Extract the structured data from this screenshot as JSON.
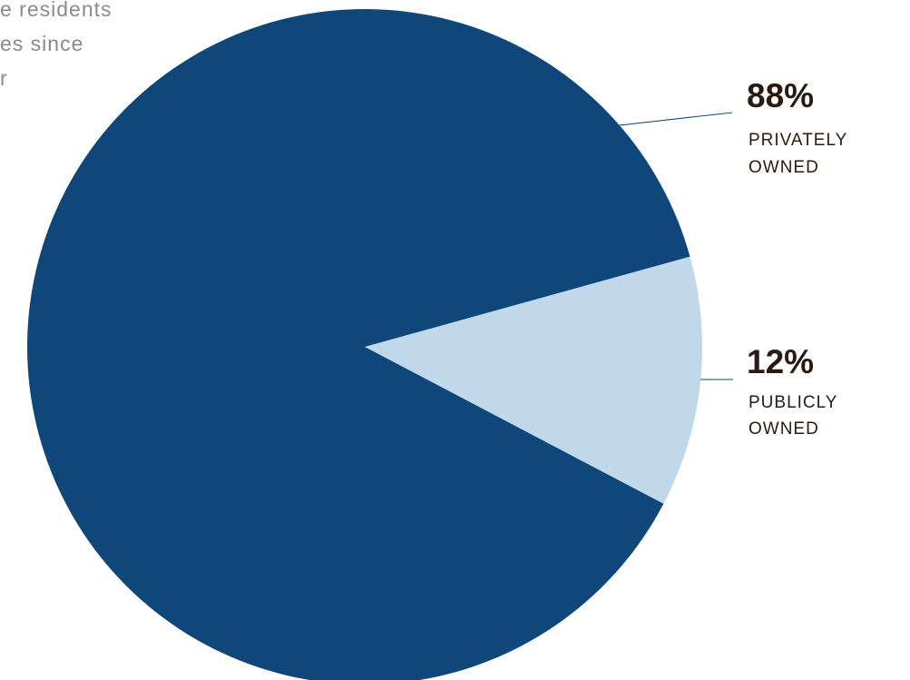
{
  "background_text": {
    "line1": "e residents",
    "line2": "es since",
    "line3": "r"
  },
  "chart_data": {
    "type": "pie",
    "slices": [
      {
        "label": "PRIVATELY OWNED",
        "label_lines": [
          "PRIVATELY",
          "OWNED"
        ],
        "value": 88,
        "value_label": "88%",
        "color": "#10477a"
      },
      {
        "label": "PUBLICLY OWNED",
        "label_lines": [
          "PUBLICLY",
          "OWNED"
        ],
        "value": 12,
        "value_label": "12%",
        "color": "#c0d8ea"
      }
    ],
    "leader_line_color": "#10477a"
  }
}
